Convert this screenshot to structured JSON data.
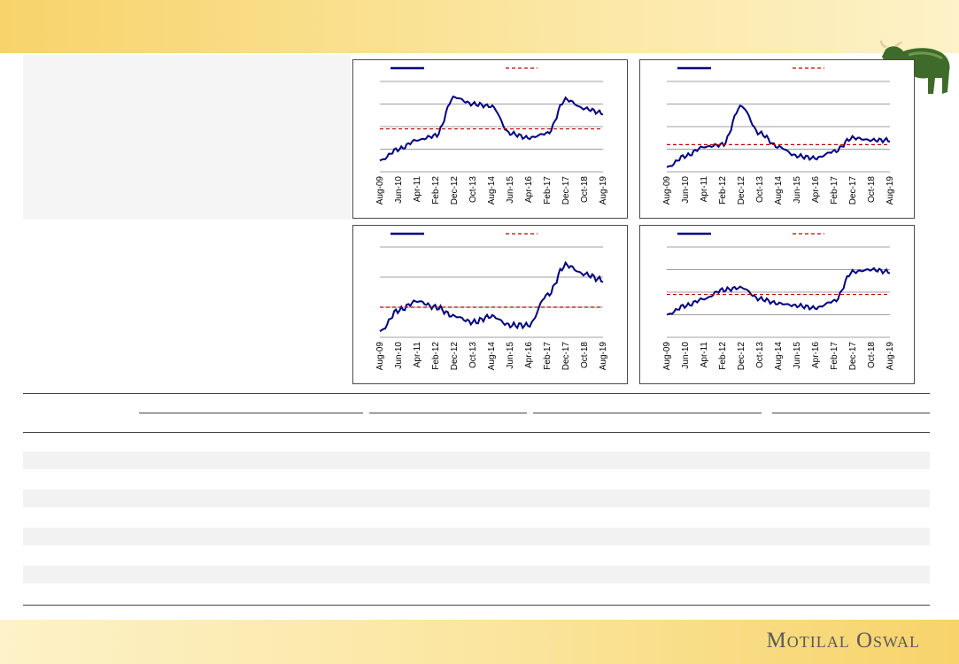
{
  "brand": {
    "name": "Motilal Oswal"
  },
  "colors": {
    "series": "#000080",
    "average": "#c00000",
    "grid": "#808080"
  },
  "icons": {
    "mascot": "bull-icon"
  },
  "x_ticks": [
    "Aug-09",
    "Jun-10",
    "Apr-11",
    "Feb-12",
    "Dec-12",
    "Oct-13",
    "Aug-14",
    "Jun-15",
    "Apr-16",
    "Feb-17",
    "Dec-17",
    "Oct-18",
    "Aug-19"
  ],
  "chart_data": [
    {
      "type": "line",
      "legend": "top",
      "grid": true,
      "x": [
        "Aug-09",
        "Jun-10",
        "Apr-11",
        "Feb-12",
        "Dec-12",
        "Oct-13",
        "Aug-14",
        "Jun-15",
        "Apr-16",
        "Feb-17",
        "Dec-17",
        "Oct-18",
        "Aug-19"
      ],
      "series": [
        {
          "style": "solid",
          "values": [
            0.5,
            1.0,
            1.4,
            1.6,
            3.3,
            3.0,
            2.9,
            1.7,
            1.5,
            1.7,
            3.2,
            2.8,
            2.6
          ]
        },
        {
          "style": "dashed",
          "values": [
            1.9,
            1.9,
            1.9,
            1.9,
            1.9,
            1.9,
            1.9,
            1.9,
            1.9,
            1.9,
            1.9,
            1.9,
            1.9
          ]
        }
      ],
      "ylim": [
        0,
        4
      ]
    },
    {
      "type": "line",
      "legend": "top",
      "grid": true,
      "x": [
        "Aug-09",
        "Jun-10",
        "Apr-11",
        "Feb-12",
        "Dec-12",
        "Oct-13",
        "Aug-14",
        "Jun-15",
        "Apr-16",
        "Feb-17",
        "Dec-17",
        "Oct-18",
        "Aug-19"
      ],
      "series": [
        {
          "style": "solid",
          "values": [
            0.2,
            0.7,
            1.1,
            1.2,
            2.9,
            1.7,
            1.1,
            0.7,
            0.6,
            0.9,
            1.5,
            1.4,
            1.4
          ]
        },
        {
          "style": "dashed",
          "values": [
            1.2,
            1.2,
            1.2,
            1.2,
            1.2,
            1.2,
            1.2,
            1.2,
            1.2,
            1.2,
            1.2,
            1.2,
            1.2
          ]
        }
      ],
      "ylim": [
        0,
        4
      ]
    },
    {
      "type": "line",
      "legend": "top",
      "grid": true,
      "x": [
        "Aug-09",
        "Jun-10",
        "Apr-11",
        "Feb-12",
        "Dec-12",
        "Oct-13",
        "Aug-14",
        "Jun-15",
        "Apr-16",
        "Feb-17",
        "Dec-17",
        "Oct-18",
        "Aug-19"
      ],
      "series": [
        {
          "style": "solid",
          "values": [
            0.2,
            0.9,
            1.2,
            1.0,
            0.7,
            0.5,
            0.7,
            0.4,
            0.4,
            1.4,
            2.4,
            2.1,
            1.9
          ]
        },
        {
          "style": "dashed",
          "values": [
            1.0,
            1.0,
            1.0,
            1.0,
            1.0,
            1.0,
            1.0,
            1.0,
            1.0,
            1.0,
            1.0,
            1.0,
            1.0
          ]
        }
      ],
      "ylim": [
        0,
        3
      ]
    },
    {
      "type": "line",
      "legend": "top",
      "grid": true,
      "x": [
        "Aug-09",
        "Jun-10",
        "Apr-11",
        "Feb-12",
        "Dec-12",
        "Oct-13",
        "Aug-14",
        "Jun-15",
        "Apr-16",
        "Feb-17",
        "Dec-17",
        "Oct-18",
        "Aug-19"
      ],
      "series": [
        {
          "style": "solid",
          "values": [
            1.0,
            1.4,
            1.7,
            2.1,
            2.2,
            1.7,
            1.5,
            1.4,
            1.3,
            1.6,
            2.9,
            3.0,
            2.9
          ]
        },
        {
          "style": "dashed",
          "values": [
            1.9,
            1.9,
            1.9,
            1.9,
            1.9,
            1.9,
            1.9,
            1.9,
            1.9,
            1.9,
            1.9,
            1.9,
            1.9
          ]
        }
      ],
      "ylim": [
        0,
        4
      ]
    }
  ]
}
